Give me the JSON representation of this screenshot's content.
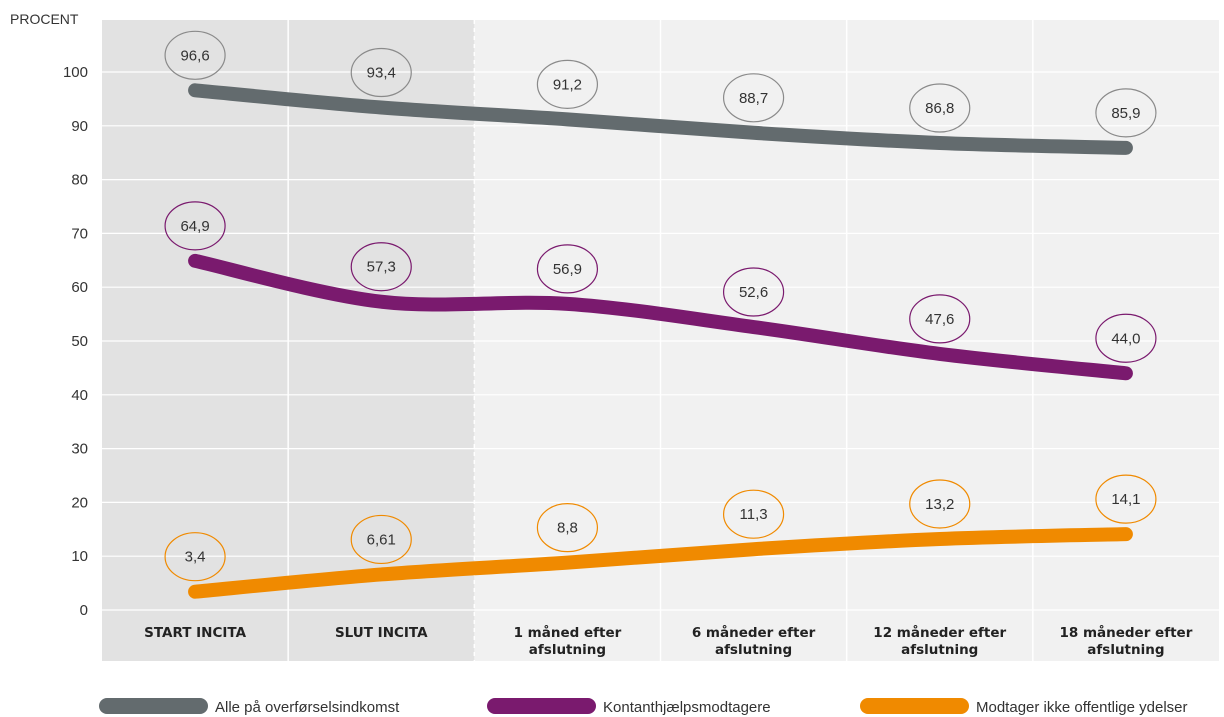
{
  "chart_data": {
    "type": "line",
    "ylabel": "PROCENT",
    "ylim": [
      0,
      100
    ],
    "yticks": [
      0,
      10,
      20,
      30,
      40,
      50,
      60,
      70,
      80,
      90,
      100
    ],
    "categories": [
      [
        "START INCITA"
      ],
      [
        "SLUT INCITA"
      ],
      [
        "1 måned efter",
        "afslutning"
      ],
      [
        "6 måneder efter",
        "afslutning"
      ],
      [
        "12 måneder efter",
        "afslutning"
      ],
      [
        "18 måneder efter",
        "afslutning"
      ]
    ],
    "shaded_categories": 2,
    "series": [
      {
        "name": "Alle på overførselsindkomst",
        "color": "#636b6e",
        "label_color": "#8a8a8a",
        "values": [
          96.6,
          93.4,
          91.2,
          88.7,
          86.8,
          85.9
        ],
        "labels": [
          "96,6",
          "93,4",
          "91,2",
          "88,7",
          "86,8",
          "85,9"
        ]
      },
      {
        "name": "Kontanthjælpsmodtagere",
        "color": "#7a1a6e",
        "label_color": "#7a1a6e",
        "values": [
          64.9,
          57.3,
          56.9,
          52.6,
          47.6,
          44.0
        ],
        "labels": [
          "64,9",
          "57,3",
          "56,9",
          "52,6",
          "47,6",
          "44,0"
        ]
      },
      {
        "name": "Modtager ikke offentlige ydelser",
        "color": "#f08a00",
        "label_color": "#f08a00",
        "values": [
          3.4,
          6.61,
          8.8,
          11.3,
          13.2,
          14.1
        ],
        "labels": [
          "3,4",
          "6,61",
          "8,8",
          "11,3",
          "13,2",
          "14,1"
        ]
      }
    ],
    "legend_position": "bottom",
    "grid": true
  }
}
